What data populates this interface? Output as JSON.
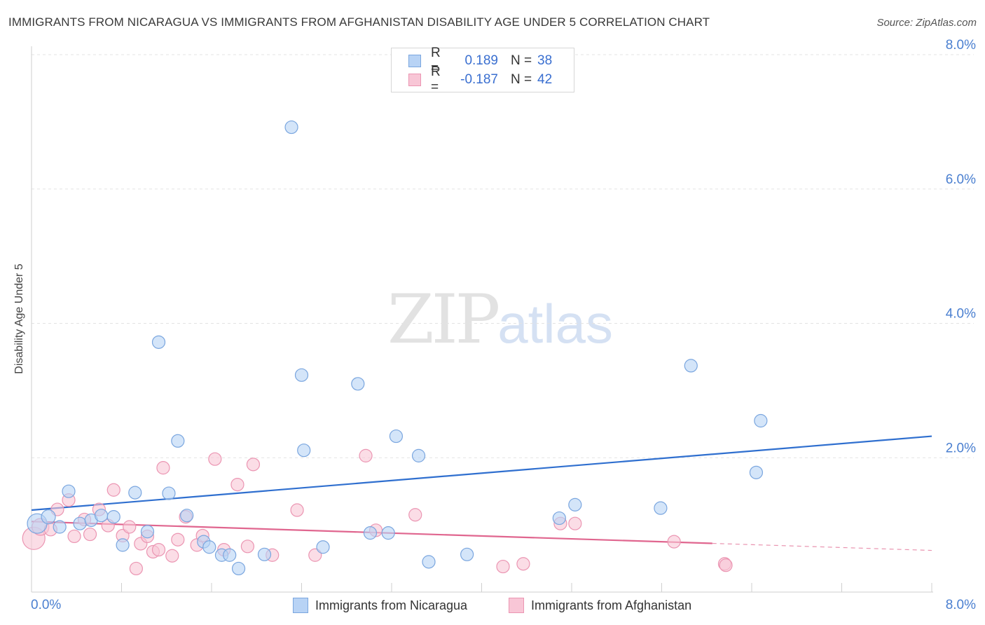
{
  "header": {
    "title": "IMMIGRANTS FROM NICARAGUA VS IMMIGRANTS FROM AFGHANISTAN DISABILITY AGE UNDER 5 CORRELATION CHART",
    "source": "Source: ZipAtlas.com"
  },
  "watermark": {
    "zip": "ZIP",
    "atlas": "atlas"
  },
  "legend": {
    "rows": [
      {
        "r_label": "R =",
        "r_value": "0.189",
        "n_label": "N =",
        "n_value": "38"
      },
      {
        "r_label": "R =",
        "r_value": "-0.187",
        "n_label": "N =",
        "n_value": "42"
      }
    ]
  },
  "bottom_legend": {
    "nicaragua": "Immigrants from Nicaragua",
    "afghanistan": "Immigrants from Afghanistan"
  },
  "colors": {
    "nicaragua_fill": "#b8d3f5",
    "nicaragua_stroke": "#7aa6df",
    "nicaragua_line": "#2f6fcf",
    "afghanistan_fill": "#f8c6d6",
    "afghanistan_stroke": "#eb95b2",
    "afghanistan_line": "#e0668f",
    "tick_text": "#4a7fd0"
  },
  "chart_data": {
    "type": "scatter",
    "title": "IMMIGRANTS FROM NICARAGUA VS IMMIGRANTS FROM AFGHANISTAN DISABILITY AGE UNDER 5 CORRELATION CHART",
    "xlabel": "",
    "ylabel": "Disability Age Under 5",
    "xlim": [
      0,
      8
    ],
    "ylim": [
      0,
      8
    ],
    "x_tick_labels": [
      "0.0%",
      "8.0%"
    ],
    "y_ticks": [
      {
        "value": 2,
        "label": "2.0%"
      },
      {
        "value": 4,
        "label": "4.0%"
      },
      {
        "value": 6,
        "label": "6.0%"
      },
      {
        "value": 8,
        "label": "8.0%"
      }
    ],
    "series": [
      {
        "name": "Immigrants from Nicaragua",
        "r": 0.189,
        "n": 38,
        "trend": {
          "x0": 0.0,
          "y0": 1.22,
          "x1": 8.0,
          "y1": 2.32,
          "dash_from": null
        },
        "points": [
          [
            0.05,
            1.02,
            14
          ],
          [
            0.15,
            1.12,
            10
          ],
          [
            0.25,
            0.97,
            9
          ],
          [
            0.33,
            1.5,
            9
          ],
          [
            0.43,
            1.02,
            9
          ],
          [
            0.53,
            1.07,
            9
          ],
          [
            0.62,
            1.14,
            9
          ],
          [
            0.73,
            1.12,
            9
          ],
          [
            0.81,
            0.7,
            9
          ],
          [
            0.92,
            1.48,
            9
          ],
          [
            1.03,
            0.9,
            9
          ],
          [
            1.13,
            3.72,
            9
          ],
          [
            1.22,
            1.47,
            9
          ],
          [
            1.3,
            2.25,
            9
          ],
          [
            1.38,
            1.14,
            9
          ],
          [
            1.53,
            0.75,
            9
          ],
          [
            1.58,
            0.67,
            9
          ],
          [
            1.69,
            0.55,
            9
          ],
          [
            1.76,
            0.55,
            9
          ],
          [
            1.84,
            0.35,
            9
          ],
          [
            2.07,
            0.56,
            9
          ],
          [
            2.31,
            6.92,
            9
          ],
          [
            2.4,
            3.23,
            9
          ],
          [
            2.42,
            2.11,
            9
          ],
          [
            2.59,
            0.67,
            9
          ],
          [
            2.9,
            3.1,
            9
          ],
          [
            3.01,
            0.88,
            9
          ],
          [
            3.17,
            0.88,
            9
          ],
          [
            3.24,
            2.32,
            9
          ],
          [
            3.44,
            2.03,
            9
          ],
          [
            3.53,
            0.45,
            9
          ],
          [
            3.87,
            0.56,
            9
          ],
          [
            4.69,
            1.1,
            9
          ],
          [
            4.83,
            1.3,
            9
          ],
          [
            5.59,
            1.25,
            9
          ],
          [
            5.86,
            3.37,
            9
          ],
          [
            6.44,
            1.78,
            9
          ],
          [
            6.48,
            2.55,
            9
          ]
        ]
      },
      {
        "name": "Immigrants from Afghanistan",
        "r": -0.187,
        "n": 42,
        "trend": {
          "x0": 0.0,
          "y0": 1.05,
          "x1": 8.0,
          "y1": 0.62,
          "dash_from": 6.05
        },
        "points": [
          [
            0.02,
            0.8,
            16
          ],
          [
            0.08,
            0.97,
            12
          ],
          [
            0.17,
            0.93,
            9
          ],
          [
            0.23,
            1.23,
            9
          ],
          [
            0.33,
            1.37,
            9
          ],
          [
            0.38,
            0.83,
            9
          ],
          [
            0.47,
            1.08,
            9
          ],
          [
            0.52,
            0.86,
            9
          ],
          [
            0.6,
            1.23,
            9
          ],
          [
            0.68,
            0.99,
            9
          ],
          [
            0.73,
            1.52,
            9
          ],
          [
            0.81,
            0.84,
            9
          ],
          [
            0.87,
            0.97,
            9
          ],
          [
            0.93,
            0.35,
            9
          ],
          [
            0.97,
            0.72,
            9
          ],
          [
            1.03,
            0.83,
            9
          ],
          [
            1.08,
            0.6,
            9
          ],
          [
            1.13,
            0.63,
            9
          ],
          [
            1.17,
            1.85,
            9
          ],
          [
            1.25,
            0.54,
            9
          ],
          [
            1.3,
            0.78,
            9
          ],
          [
            1.37,
            1.12,
            9
          ],
          [
            1.47,
            0.7,
            9
          ],
          [
            1.52,
            0.84,
            9
          ],
          [
            1.63,
            1.98,
            9
          ],
          [
            1.71,
            0.63,
            9
          ],
          [
            1.83,
            1.6,
            9
          ],
          [
            1.92,
            0.68,
            9
          ],
          [
            1.97,
            1.9,
            9
          ],
          [
            2.14,
            0.55,
            9
          ],
          [
            2.36,
            1.22,
            9
          ],
          [
            2.52,
            0.55,
            9
          ],
          [
            2.97,
            2.03,
            9
          ],
          [
            3.06,
            0.92,
            9
          ],
          [
            3.41,
            1.15,
            9
          ],
          [
            4.19,
            0.38,
            9
          ],
          [
            4.37,
            0.42,
            9
          ],
          [
            4.7,
            1.02,
            9
          ],
          [
            4.83,
            1.02,
            9
          ],
          [
            5.71,
            0.75,
            9
          ],
          [
            6.16,
            0.42,
            9
          ],
          [
            6.17,
            0.4,
            9
          ]
        ]
      }
    ]
  }
}
